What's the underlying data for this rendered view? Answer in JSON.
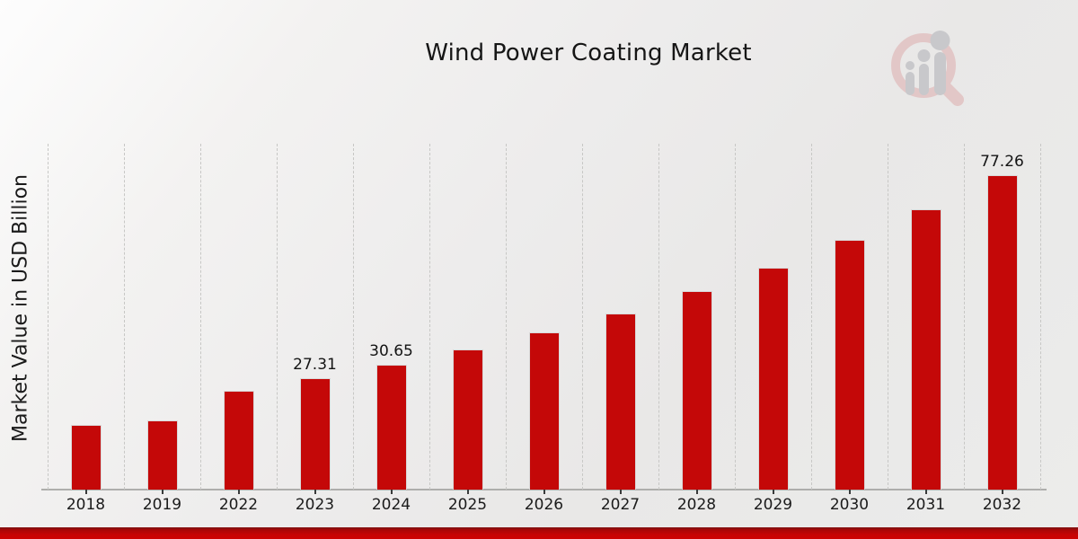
{
  "chart_data": {
    "type": "bar",
    "title": "Wind Power Coating Market",
    "ylabel": "Market Value in USD Billion",
    "xlabel": "",
    "categories": [
      "2018",
      "2019",
      "2022",
      "2023",
      "2024",
      "2025",
      "2026",
      "2027",
      "2028",
      "2029",
      "2030",
      "2031",
      "2032"
    ],
    "values": [
      15.8,
      17.1,
      24.3,
      27.31,
      30.65,
      34.4,
      38.6,
      43.3,
      48.7,
      54.6,
      61.3,
      68.8,
      77.26
    ],
    "data_labels": [
      "",
      "",
      "",
      "27.31",
      "30.65",
      "",
      "",
      "",
      "",
      "",
      "",
      "",
      "77.26"
    ],
    "ylim": [
      0,
      85
    ],
    "bar_color": "#c40808",
    "grid": "vertical dashed category-boundary gridlines",
    "legend": "none",
    "watermark_icon": "magnifier-bar-chart-logo"
  },
  "footer": {
    "accent_bar_color": "#c60404"
  },
  "colors": {
    "background_start": "#fdfdfd",
    "background_end": "#ececeb",
    "gridline": "#c7c7c5",
    "axis_line": "#aeaeac",
    "text": "#161616"
  }
}
